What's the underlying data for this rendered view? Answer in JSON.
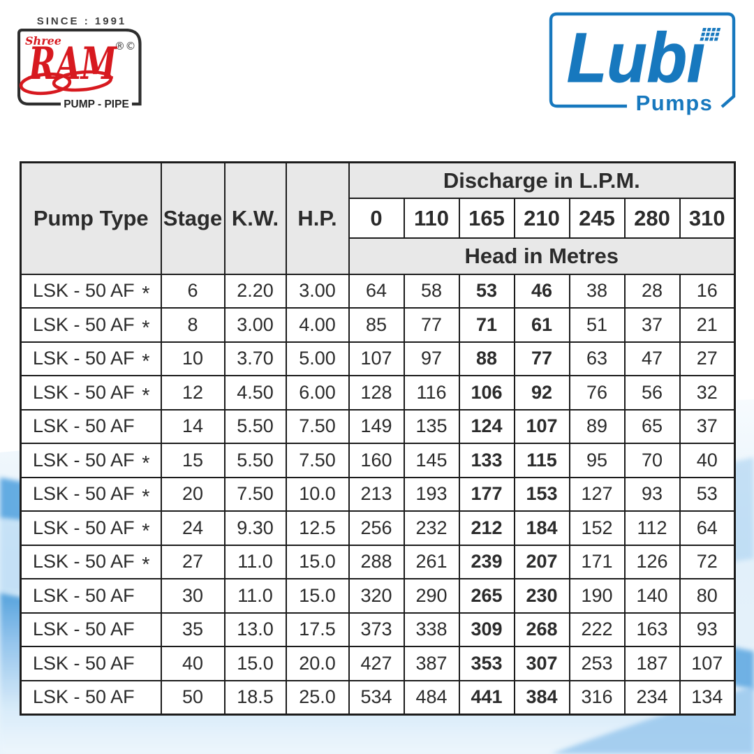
{
  "brand_left": {
    "since": "SINCE : 1991",
    "shree": "Shree",
    "name": "RAM",
    "marks": "®©",
    "tagline": "PUMP - PIPE",
    "red": "#d7191f",
    "dark": "#2e2e2e"
  },
  "brand_right": {
    "name": "Lubi",
    "sub": "Pumps",
    "blue": "#1778be",
    "grid_icon": "pixel-grid"
  },
  "table": {
    "col_headers": [
      "Pump Type",
      "Stage",
      "K.W.",
      "H.P."
    ],
    "discharge_title": "Discharge in L.P.M.",
    "discharge_values": [
      "0",
      "110",
      "165",
      "210",
      "245",
      "280",
      "310"
    ],
    "head_title": "Head in Metres",
    "bold_value_columns": [
      2,
      3
    ],
    "rows": [
      {
        "pump_type": "LSK - 50 AF",
        "star": "*",
        "stage": "6",
        "kw": "2.20",
        "hp": "3.00",
        "heads": [
          "64",
          "58",
          "53",
          "46",
          "38",
          "28",
          "16"
        ]
      },
      {
        "pump_type": "LSK - 50 AF",
        "star": "*",
        "stage": "8",
        "kw": "3.00",
        "hp": "4.00",
        "heads": [
          "85",
          "77",
          "71",
          "61",
          "51",
          "37",
          "21"
        ]
      },
      {
        "pump_type": "LSK - 50 AF",
        "star": "*",
        "stage": "10",
        "kw": "3.70",
        "hp": "5.00",
        "heads": [
          "107",
          "97",
          "88",
          "77",
          "63",
          "47",
          "27"
        ]
      },
      {
        "pump_type": "LSK - 50 AF",
        "star": "*",
        "stage": "12",
        "kw": "4.50",
        "hp": "6.00",
        "heads": [
          "128",
          "116",
          "106",
          "92",
          "76",
          "56",
          "32"
        ]
      },
      {
        "pump_type": "LSK - 50 AF",
        "star": "",
        "stage": "14",
        "kw": "5.50",
        "hp": "7.50",
        "heads": [
          "149",
          "135",
          "124",
          "107",
          "89",
          "65",
          "37"
        ]
      },
      {
        "pump_type": "LSK - 50 AF",
        "star": "*",
        "stage": "15",
        "kw": "5.50",
        "hp": "7.50",
        "heads": [
          "160",
          "145",
          "133",
          "115",
          "95",
          "70",
          "40"
        ]
      },
      {
        "pump_type": "LSK - 50 AF",
        "star": "*",
        "stage": "20",
        "kw": "7.50",
        "hp": "10.0",
        "heads": [
          "213",
          "193",
          "177",
          "153",
          "127",
          "93",
          "53"
        ]
      },
      {
        "pump_type": "LSK - 50 AF",
        "star": "*",
        "stage": "24",
        "kw": "9.30",
        "hp": "12.5",
        "heads": [
          "256",
          "232",
          "212",
          "184",
          "152",
          "112",
          "64"
        ]
      },
      {
        "pump_type": "LSK - 50 AF",
        "star": "*",
        "stage": "27",
        "kw": "11.0",
        "hp": "15.0",
        "heads": [
          "288",
          "261",
          "239",
          "207",
          "171",
          "126",
          "72"
        ]
      },
      {
        "pump_type": "LSK - 50 AF",
        "star": "",
        "stage": "30",
        "kw": "11.0",
        "hp": "15.0",
        "heads": [
          "320",
          "290",
          "265",
          "230",
          "190",
          "140",
          "80"
        ]
      },
      {
        "pump_type": "LSK - 50 AF",
        "star": "",
        "stage": "35",
        "kw": "13.0",
        "hp": "17.5",
        "heads": [
          "373",
          "338",
          "309",
          "268",
          "222",
          "163",
          "93"
        ]
      },
      {
        "pump_type": "LSK - 50 AF",
        "star": "",
        "stage": "40",
        "kw": "15.0",
        "hp": "20.0",
        "heads": [
          "427",
          "387",
          "353",
          "307",
          "253",
          "187",
          "107"
        ]
      },
      {
        "pump_type": "LSK - 50 AF",
        "star": "",
        "stage": "50",
        "kw": "18.5",
        "hp": "25.0",
        "heads": [
          "534",
          "484",
          "441",
          "384",
          "316",
          "234",
          "134"
        ]
      }
    ]
  },
  "background": {
    "wave_light": "#e6f2fb",
    "wave_band": "#5fa9e1",
    "wave_deep": "#4f9fdb"
  }
}
